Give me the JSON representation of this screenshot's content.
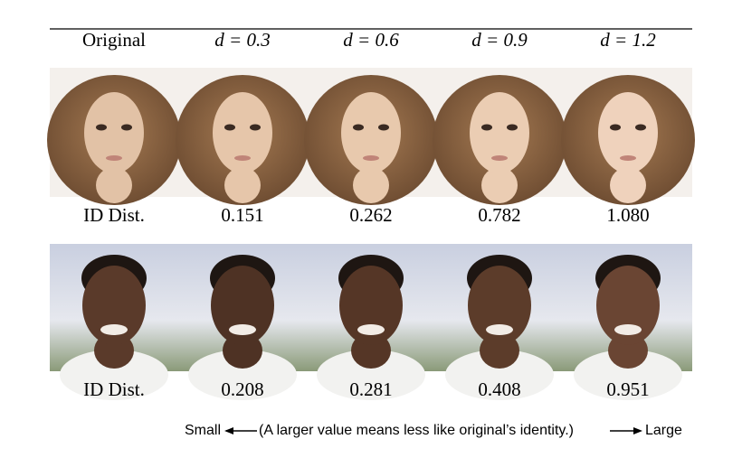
{
  "table": {
    "header": [
      "Original",
      "d = 0.3",
      "d = 0.6",
      "d = 0.9",
      "d = 1.2"
    ],
    "rows": [
      {
        "label": "ID Dist.",
        "values": [
          "0.151",
          "0.262",
          "0.782",
          "1.080"
        ]
      },
      {
        "label": "ID Dist.",
        "values": [
          "0.208",
          "0.281",
          "0.408",
          "0.951"
        ]
      }
    ]
  },
  "note": {
    "left": "Small",
    "text": "(A larger value means less like original’s identity.)",
    "right": "Large"
  }
}
